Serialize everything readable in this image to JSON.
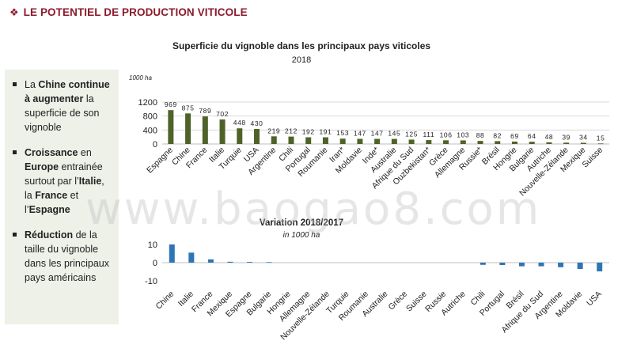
{
  "header": {
    "title": "LE POTENTIEL DE PRODUCTION VITICOLE",
    "logo_icon": "grape-icon"
  },
  "sidebar": {
    "bullets": [
      [
        {
          "t": "La ",
          "b": false
        },
        {
          "t": "Chine continue à augmenter",
          "b": true
        },
        {
          "t": " la superficie de son vignoble",
          "b": false
        }
      ],
      [
        {
          "t": "Croissance",
          "b": true
        },
        {
          "t": " en ",
          "b": false
        },
        {
          "t": "Europe",
          "b": true
        },
        {
          "t": " entrainée surtout par l’",
          "b": false
        },
        {
          "t": "Italie",
          "b": true
        },
        {
          "t": ", la ",
          "b": false
        },
        {
          "t": "France",
          "b": true
        },
        {
          "t": " et l’",
          "b": false
        },
        {
          "t": "Espagne",
          "b": true
        }
      ],
      [
        {
          "t": "Réduction",
          "b": true
        },
        {
          "t": " de la taille du vignoble dans les principaux pays américains",
          "b": false
        }
      ]
    ]
  },
  "watermark": "www.baogao8.com",
  "chart_data": [
    {
      "type": "bar",
      "title": "Superficie du vignoble dans les principaux pays viticoles",
      "subtitle": "2018",
      "ylabel": "1000 ha",
      "ylim": [
        0,
        1200
      ],
      "yticks": [
        0,
        400,
        800,
        1200
      ],
      "grid": true,
      "color": "#4f6228",
      "categories": [
        "Espagne",
        "Chine",
        "France",
        "Italie",
        "Turquie",
        "USA",
        "Argentine",
        "Chili",
        "Portugal",
        "Roumanie",
        "Iran*",
        "Moldavie",
        "Inde*",
        "Australie",
        "Afrique du Sud",
        "Ouzbekistan*",
        "Grèce",
        "Allemagne",
        "Russie*",
        "Brésil",
        "Hongrie",
        "Bulgarie",
        "Autriche",
        "Nouvelle-Zélande",
        "Mexique",
        "Suisse"
      ],
      "values": [
        969,
        875,
        789,
        702,
        448,
        430,
        219,
        212,
        192,
        191,
        153,
        147,
        147,
        145,
        125,
        111,
        106,
        103,
        88,
        82,
        69,
        64,
        48,
        39,
        34,
        15
      ]
    },
    {
      "type": "bar",
      "title": "Variation 2018/2017",
      "subtitle": "in 1000 ha",
      "ylim": [
        -10,
        10
      ],
      "yticks": [
        -10,
        0,
        10
      ],
      "grid": false,
      "color": "#2e75b6",
      "categories": [
        "Chine",
        "Italie",
        "France",
        "Mexique",
        "Espagne",
        "Bulgarie",
        "Hongrie",
        "Allemagne",
        "Nouvelle-Zélande",
        "Turquie",
        "Roumanie",
        "Australie",
        "Grèce",
        "Suisse",
        "Russie",
        "Autriche",
        "Chili",
        "Portugal",
        "Brésil",
        "Afrique du Sud",
        "Argentine",
        "Moldavie",
        "USA"
      ],
      "values": [
        10,
        5.5,
        1.8,
        0.5,
        0.4,
        0.3,
        0,
        0,
        0,
        0,
        0,
        0,
        0,
        0,
        0,
        0,
        -1.2,
        -1.3,
        -2,
        -2,
        -2.5,
        -3.5,
        -4.8
      ]
    }
  ]
}
